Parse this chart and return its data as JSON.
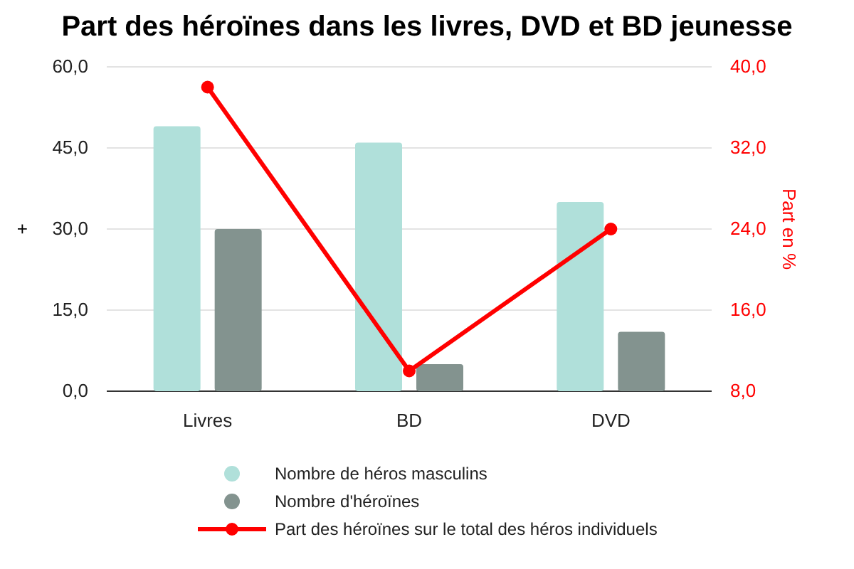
{
  "chart_data": {
    "type": "bar",
    "title": "Part des héroïnes dans les livres, DVD et BD jeunesse",
    "ylabel": "+",
    "y2label": "Part en %",
    "categories": [
      "Livres",
      "BD",
      "DVD"
    ],
    "series": [
      {
        "name": "Nombre de héros masculins",
        "color": "#b0e0da",
        "values": [
          49,
          46,
          35
        ]
      },
      {
        "name": "Nombre d'héroïnes",
        "color": "#83938f",
        "values": [
          30,
          5,
          11
        ]
      },
      {
        "name": "Part des héroïnes sur le total des héros individuels",
        "type": "line",
        "axis": "y2",
        "color": "#ff0000",
        "values": [
          38,
          10,
          24
        ]
      }
    ],
    "ylim": [
      0,
      60
    ],
    "yticks": [
      {
        "value": 0,
        "label": "0,0"
      },
      {
        "value": 15,
        "label": "15,0"
      },
      {
        "value": 30,
        "label": "30,0"
      },
      {
        "value": 45,
        "label": "45,0"
      },
      {
        "value": 60,
        "label": "60,0"
      }
    ],
    "y2lim": [
      8,
      40
    ],
    "y2ticks": [
      {
        "value": 8,
        "label": "8,0"
      },
      {
        "value": 16,
        "label": "16,0"
      },
      {
        "value": 24,
        "label": "24,0"
      },
      {
        "value": 32,
        "label": "32,0"
      },
      {
        "value": 40,
        "label": "40,0"
      }
    ],
    "grid": "y",
    "legend": "bottom",
    "marker": "circle",
    "line_style": "solid"
  }
}
